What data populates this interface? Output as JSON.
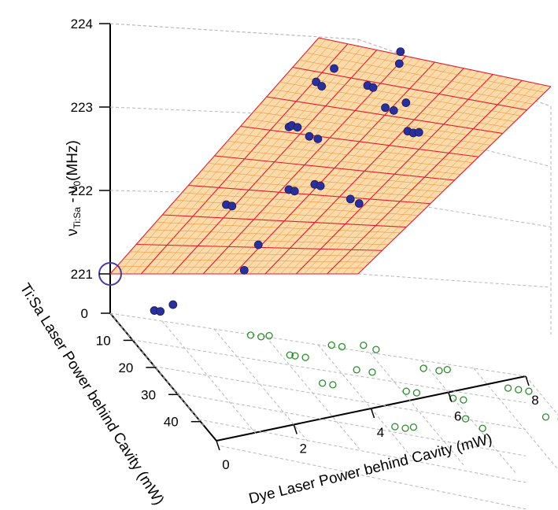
{
  "chart_data": {
    "type": "scatter",
    "projection": "3d",
    "xlabel": "Dye Laser Power behind Cavity (mW)",
    "ylabel": "Ti:Sa Laser Power behind Cavity (mW)",
    "zlabel_main": "ν",
    "zlabel_sub": "Ti:Sa",
    "zlabel_mid": " - ν",
    "zlabel_sub2": "0",
    "zlabel_end": "(MHz)",
    "xlim": [
      0,
      8
    ],
    "ylim": [
      0,
      48
    ],
    "zlim": [
      221,
      224
    ],
    "xticks": [
      "0",
      "2",
      "4",
      "6",
      "8"
    ],
    "yticks": [
      "0",
      "10",
      "20",
      "30",
      "40"
    ],
    "zticks": [
      "221",
      "222",
      "223",
      "224"
    ],
    "grid": true,
    "fit_plane": {
      "z_at_origin": 221.0,
      "slope_x": 0.22,
      "slope_y": 0.0133,
      "mesh_fine": 0.5,
      "mesh_coarse": 1.0
    },
    "colors": {
      "plane_fill": "#fbd49a",
      "plane_mesh_fine": "#f08a2c",
      "plane_mesh_coarse": "#e31a2a",
      "points": "#2b2f9a",
      "projections": "#2a8a2a",
      "origin_marker": "#4a3aa0",
      "grid": "#b8b8b8"
    },
    "series": [
      {
        "values": [
          {
            "x": 0.9,
            "y": 5,
            "z": 221.3
          },
          {
            "x": 1.1,
            "y": 5,
            "z": 221.2
          },
          {
            "x": 1.3,
            "y": 4,
            "z": 221.7
          },
          {
            "x": 1.4,
            "y": 11,
            "z": 221.6
          },
          {
            "x": 1.5,
            "y": 11,
            "z": 221.7
          },
          {
            "x": 1.7,
            "y": 11,
            "z": 221.7
          },
          {
            "x": 1.6,
            "y": 21,
            "z": 221.7
          },
          {
            "x": 1.8,
            "y": 21,
            "z": 221.7
          },
          {
            "x": 2.4,
            "y": 35,
            "z": 222.0
          },
          {
            "x": 2.6,
            "y": 35,
            "z": 222.0
          },
          {
            "x": 2.8,
            "y": 34,
            "z": 222.0
          },
          {
            "x": 2.5,
            "y": 4,
            "z": 221.5
          },
          {
            "x": 2.7,
            "y": 4,
            "z": 221.5
          },
          {
            "x": 2.6,
            "y": 13,
            "z": 222.3
          },
          {
            "x": 2.9,
            "y": 13,
            "z": 222.3
          },
          {
            "x": 3.2,
            "y": 2,
            "z": 222.6
          },
          {
            "x": 3.4,
            "y": 3,
            "z": 222.5
          },
          {
            "x": 3.3,
            "y": 19,
            "z": 222.2
          },
          {
            "x": 3.5,
            "y": 19,
            "z": 222.2
          },
          {
            "x": 4.1,
            "y": 27,
            "z": 222.6
          },
          {
            "x": 4.3,
            "y": 30,
            "z": 222.5
          },
          {
            "x": 4.1,
            "y": 8,
            "z": 222.5
          },
          {
            "x": 4.4,
            "y": 8,
            "z": 222.5
          },
          {
            "x": 4.6,
            "y": 7,
            "z": 222.6
          },
          {
            "x": 4.2,
            "y": 19,
            "z": 222.7
          },
          {
            "x": 4.4,
            "y": 19,
            "z": 222.7
          },
          {
            "x": 5.6,
            "y": 11,
            "z": 223.0
          },
          {
            "x": 5.8,
            "y": 11,
            "z": 223.0
          },
          {
            "x": 6.0,
            "y": 11,
            "z": 223.1
          },
          {
            "x": 5.9,
            "y": 21,
            "z": 223.2
          },
          {
            "x": 6.2,
            "y": 21,
            "z": 223.1
          }
        ]
      }
    ]
  }
}
